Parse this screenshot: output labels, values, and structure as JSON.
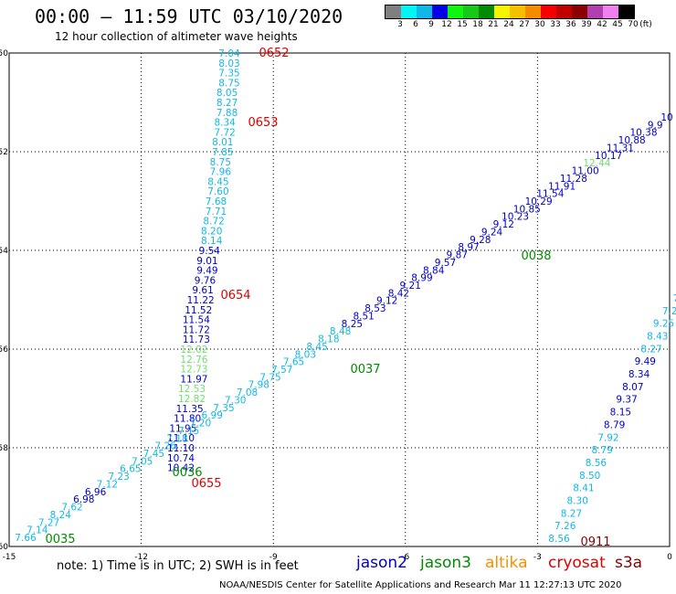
{
  "title": "00:00 – 11:59 UTC 03/10/2020",
  "subtitle": "12 hour collection of altimeter wave heights",
  "colorbar": {
    "unit": "(ft)",
    "ticks": [
      "3",
      "6",
      "9",
      "12",
      "15",
      "18",
      "21",
      "24",
      "27",
      "30",
      "33",
      "36",
      "39",
      "42",
      "45",
      "70"
    ],
    "colors": [
      "#7f7f7f",
      "#00f5f5",
      "#10b8e8",
      "#0000e8",
      "#10f510",
      "#18c818",
      "#008c00",
      "#f5f500",
      "#f5c000",
      "#f58c00",
      "#f50000",
      "#c00000",
      "#8c0000",
      "#b040b0",
      "#f080f0",
      "#000000"
    ]
  },
  "axes": {
    "x_ticks": [
      "-15",
      "-12",
      "-9",
      "-6",
      "-3",
      "0"
    ],
    "y_ticks": [
      "-50",
      "-52",
      "-54",
      "-56",
      "-58",
      "-60"
    ]
  },
  "map": {
    "region": "altimeter track plot",
    "lon_range": [
      -15,
      0
    ],
    "lat_range": [
      -60,
      -50
    ],
    "colors": {
      "jason2": "#0000c8",
      "jason3": "#008c00",
      "altika": "#f59000",
      "cryosat": "#e00000",
      "s3a": "#8c0000",
      "swh_light": "#10b8e8",
      "swh_green": "#70e070"
    },
    "tracks": [
      {
        "id": "left-track",
        "color_key": "jason2",
        "labels": [
          {
            "v": "7.04",
            "lon": -10.0,
            "lat": -50.0,
            "c": "swh_light"
          },
          {
            "v": "8.03",
            "lon": -10.0,
            "lat": -50.2,
            "c": "swh_light"
          },
          {
            "v": "7.35",
            "lon": -10.0,
            "lat": -50.4,
            "c": "swh_light"
          },
          {
            "v": "8.75",
            "lon": -10.0,
            "lat": -50.6,
            "c": "swh_light"
          },
          {
            "v": "8.05",
            "lon": -10.05,
            "lat": -50.8,
            "c": "swh_light"
          },
          {
            "v": "8.27",
            "lon": -10.05,
            "lat": -51.0,
            "c": "swh_light"
          },
          {
            "v": "7.88",
            "lon": -10.05,
            "lat": -51.2,
            "c": "swh_light"
          },
          {
            "v": "8.34",
            "lon": -10.1,
            "lat": -51.4,
            "c": "swh_light"
          },
          {
            "v": "7.72",
            "lon": -10.1,
            "lat": -51.6,
            "c": "swh_light"
          },
          {
            "v": "8.01",
            "lon": -10.15,
            "lat": -51.8,
            "c": "swh_light"
          },
          {
            "v": "7.85",
            "lon": -10.15,
            "lat": -52.0,
            "c": "swh_light"
          },
          {
            "v": "8.75",
            "lon": -10.2,
            "lat": -52.2,
            "c": "swh_light"
          },
          {
            "v": "7.96",
            "lon": -10.2,
            "lat": -52.4,
            "c": "swh_light"
          },
          {
            "v": "8.45",
            "lon": -10.25,
            "lat": -52.6,
            "c": "swh_light"
          },
          {
            "v": "7.60",
            "lon": -10.25,
            "lat": -52.8,
            "c": "swh_light"
          },
          {
            "v": "7.68",
            "lon": -10.3,
            "lat": -53.0,
            "c": "swh_light"
          },
          {
            "v": "7.71",
            "lon": -10.3,
            "lat": -53.2,
            "c": "swh_light"
          },
          {
            "v": "8.72",
            "lon": -10.35,
            "lat": -53.4,
            "c": "swh_light"
          },
          {
            "v": "8.20",
            "lon": -10.4,
            "lat": -53.6,
            "c": "swh_light"
          },
          {
            "v": "8.14",
            "lon": -10.4,
            "lat": -53.8,
            "c": "swh_light"
          },
          {
            "v": "9.54",
            "lon": -10.45,
            "lat": -54.0,
            "c": "jason2"
          },
          {
            "v": "9.01",
            "lon": -10.5,
            "lat": -54.2,
            "c": "jason2"
          },
          {
            "v": "9.49",
            "lon": -10.5,
            "lat": -54.4,
            "c": "jason2"
          },
          {
            "v": "9.76",
            "lon": -10.55,
            "lat": -54.6,
            "c": "jason2"
          },
          {
            "v": "9.61",
            "lon": -10.6,
            "lat": -54.8,
            "c": "jason2"
          },
          {
            "v": "11.22",
            "lon": -10.65,
            "lat": -55.0,
            "c": "jason2"
          },
          {
            "v": "11.52",
            "lon": -10.7,
            "lat": -55.2,
            "c": "jason2"
          },
          {
            "v": "11.54",
            "lon": -10.75,
            "lat": -55.4,
            "c": "jason2"
          },
          {
            "v": "11.72",
            "lon": -10.75,
            "lat": -55.6,
            "c": "jason2"
          },
          {
            "v": "11.73",
            "lon": -10.75,
            "lat": -55.8,
            "c": "jason2"
          },
          {
            "v": "12.02",
            "lon": -10.8,
            "lat": -56.0,
            "c": "swh_green"
          },
          {
            "v": "12.76",
            "lon": -10.8,
            "lat": -56.2,
            "c": "swh_green"
          },
          {
            "v": "12.73",
            "lon": -10.8,
            "lat": -56.4,
            "c": "swh_green"
          },
          {
            "v": "11.97",
            "lon": -10.8,
            "lat": -56.6,
            "c": "jason2"
          },
          {
            "v": "12.53",
            "lon": -10.85,
            "lat": -56.8,
            "c": "swh_green"
          },
          {
            "v": "12.82",
            "lon": -10.85,
            "lat": -57.0,
            "c": "swh_green"
          },
          {
            "v": "11.35",
            "lon": -10.9,
            "lat": -57.2,
            "c": "jason2"
          },
          {
            "v": "11.80",
            "lon": -10.95,
            "lat": -57.4,
            "c": "jason2"
          },
          {
            "v": "11.95",
            "lon": -11.05,
            "lat": -57.6,
            "c": "jason2"
          },
          {
            "v": "11.10",
            "lon": -11.1,
            "lat": -57.8,
            "c": "jason2"
          },
          {
            "v": "11.10",
            "lon": -11.1,
            "lat": -58.0,
            "c": "jason2"
          },
          {
            "v": "10.74",
            "lon": -11.1,
            "lat": -58.2,
            "c": "jason2"
          },
          {
            "v": "10.42",
            "lon": -11.1,
            "lat": -58.4,
            "c": "jason2"
          }
        ]
      }
    ]
  },
  "overpass_labels": [
    {
      "text": "0652",
      "color": "#e00000"
    },
    {
      "text": "0653",
      "color": "#e00000"
    },
    {
      "text": "0654",
      "color": "#e00000"
    },
    {
      "text": "0655",
      "color": "#e00000"
    },
    {
      "text": "0911",
      "color": "#8c0000"
    },
    {
      "text": "0035",
      "color": "#008c00"
    },
    {
      "text": "0036",
      "color": "#008c00"
    },
    {
      "text": "0037",
      "color": "#008c00"
    },
    {
      "text": "0038",
      "color": "#008c00"
    }
  ],
  "note": "note: 1) Time is in UTC; 2) SWH is in feet",
  "satellites": [
    {
      "name": "jason2",
      "color": "#0000c8"
    },
    {
      "name": "jason3",
      "color": "#008c00"
    },
    {
      "name": "altika",
      "color": "#f59000"
    },
    {
      "name": "cryosat",
      "color": "#e00000"
    },
    {
      "name": "s3a",
      "color": "#8c0000"
    }
  ],
  "credit": "NOAA/NESDIS Center for Satellite Applications and Research   Mar 11 12:27:13 UTC 2020",
  "diagonal_values": [
    "7.66",
    "7.14",
    "7.27",
    "8.24",
    "7.62",
    "6.98",
    "6.96",
    "7.12",
    "7.23",
    "6.65",
    "7.05",
    "7.45",
    "7.26",
    "7.18",
    "7.15",
    "7.20",
    "6.99",
    "7.35",
    "7.30",
    "7.08",
    "7.98",
    "7.75",
    "7.57",
    "7.65",
    "8.03",
    "8.45",
    "8.18",
    "8.48",
    "8.25",
    "8.51",
    "8.53",
    "9.12",
    "8.42",
    "9.21",
    "8.99",
    "8.84",
    "9.57",
    "9.87",
    "8.97",
    "9.28",
    "9.24",
    "9.12",
    "10.23",
    "10.85",
    "10.29",
    "11.54",
    "11.91",
    "11.28",
    "11.00",
    "12.44",
    "10.17",
    "11.31",
    "10.88",
    "10.38",
    "9.9",
    "10"
  ],
  "right_values": [
    "8.56",
    "7.26",
    "8.27",
    "8.30",
    "8.41",
    "8.50",
    "8.56",
    "8.79",
    "7.92",
    "8.79",
    "8.15",
    "9.37",
    "8.07",
    "8.34",
    "9.49",
    "8.27",
    "8.43",
    "9.25",
    "7.2",
    "7"
  ]
}
